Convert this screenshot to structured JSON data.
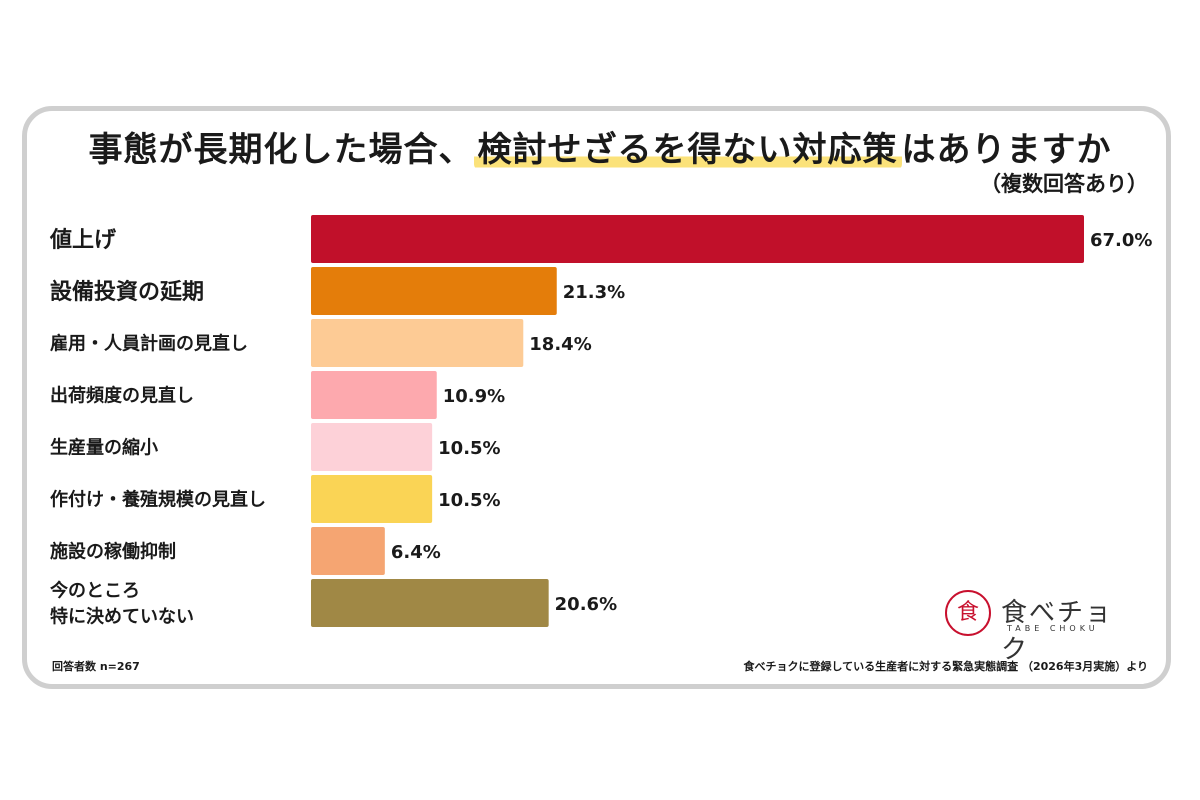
{
  "header": {
    "title_pre": "事態が長期化した場合、",
    "title_highlight": "検討せざるを得ない対応策",
    "title_post": "はありますか",
    "subtitle": "（複数回答あり）"
  },
  "chart_data": {
    "type": "bar",
    "orientation": "horizontal",
    "title": "事態が長期化した場合、検討せざるを得ない対応策はありますか",
    "subtitle": "（複数回答あり）",
    "categories": [
      "値上げ",
      "設備投資の延期",
      "雇用・人員計画の見直し",
      "出荷頻度の見直し",
      "生産量の縮小",
      "作付け・養殖規模の見直し",
      "施設の稼働抑制",
      "今のところ\n特に決めていない"
    ],
    "values": [
      67.0,
      21.3,
      18.4,
      10.9,
      10.5,
      10.5,
      6.4,
      20.6
    ],
    "value_labels": [
      "67.0%",
      "21.3%",
      "18.4%",
      "10.9%",
      "10.5%",
      "10.5%",
      "6.4%",
      "20.6%"
    ],
    "colors": [
      "#c1102a",
      "#e47d0a",
      "#fdcb95",
      "#fda9ae",
      "#fdd1d8",
      "#fad455",
      "#f5a572",
      "#a08845"
    ],
    "unit": "%",
    "xlim": [
      0,
      67.0
    ],
    "grid": false,
    "legend": "none"
  },
  "footer": {
    "respondents": "回答者数 n=267",
    "source": "食べチョクに登録している生産者に対する緊急実態調査 （2026年3月実施）より"
  },
  "logo": {
    "mark": "食",
    "name": "食べチョク",
    "sub": "TABE CHOKU"
  }
}
